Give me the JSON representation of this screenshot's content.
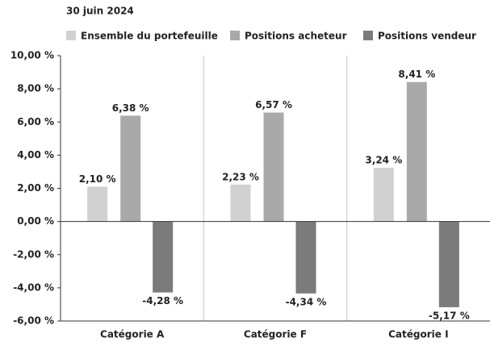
{
  "chart_data": {
    "type": "bar",
    "title": "30 juin 2024",
    "categories": [
      "Catégorie A",
      "Catégorie F",
      "Catégorie I"
    ],
    "series": [
      {
        "name": "Ensemble du portefeuille",
        "color": "#d1d1d1",
        "values": [
          2.1,
          2.23,
          3.24
        ],
        "value_labels": [
          "2,10 %",
          "2,23 %",
          "3,24 %"
        ]
      },
      {
        "name": "Positions acheteur",
        "color": "#a9a9ab",
        "values": [
          6.38,
          6.57,
          8.41
        ],
        "value_labels": [
          "6,38 %",
          "6,57 %",
          "8,41 %"
        ]
      },
      {
        "name": "Positions vendeur",
        "color": "#7b7b7d",
        "values": [
          -4.28,
          -4.34,
          -5.17
        ],
        "value_labels": [
          "-4,28 %",
          "-4,34 %",
          "-5,17 %"
        ]
      }
    ],
    "ylim": [
      -6,
      10
    ],
    "yticks": [
      {
        "value": -6,
        "label": "-6,00 %"
      },
      {
        "value": -4,
        "label": "-4,00 %"
      },
      {
        "value": -2,
        "label": "-2,00 %"
      },
      {
        "value": 0,
        "label": "0,00 %"
      },
      {
        "value": 2,
        "label": "2,00 %"
      },
      {
        "value": 4,
        "label": "4,00 %"
      },
      {
        "value": 6,
        "label": "6,00 %"
      },
      {
        "value": 8,
        "label": "8,00 %"
      },
      {
        "value": 10,
        "label": "10,00 %"
      }
    ]
  }
}
